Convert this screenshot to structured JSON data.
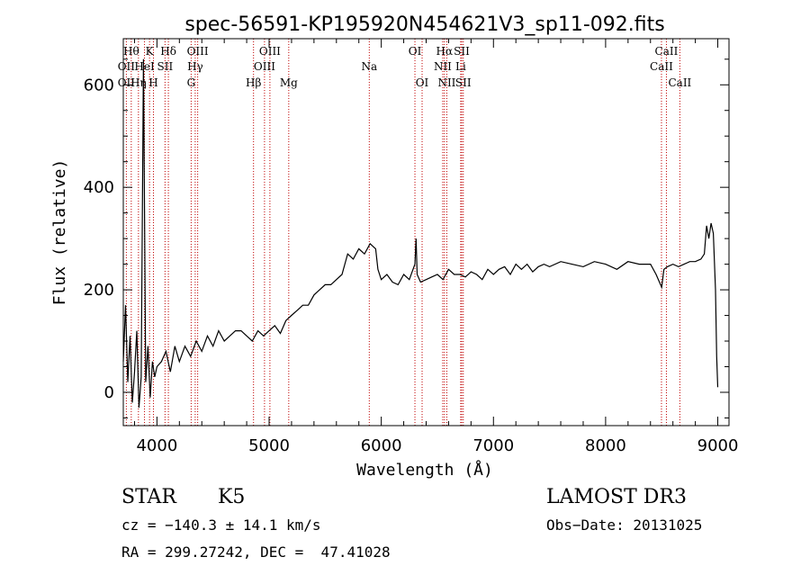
{
  "chart_data": {
    "type": "line",
    "title": "spec-56591-KP195920N454621V3_sp11-092.fits",
    "xlabel": "Wavelength (Å)",
    "ylabel": "Flux (relative)",
    "xlim": [
      3700,
      9100
    ],
    "ylim": [
      -65,
      690
    ],
    "xticks": [
      4000,
      5000,
      6000,
      7000,
      8000,
      9000
    ],
    "yticks": [
      0,
      200,
      400,
      600
    ],
    "grid": false,
    "series": [
      {
        "x": [
          3700,
          3720,
          3740,
          3760,
          3780,
          3800,
          3820,
          3840,
          3860,
          3880,
          3900,
          3920,
          3940,
          3960,
          3980,
          4000,
          4040,
          4080,
          4120,
          4160,
          4200,
          4250,
          4300,
          4350,
          4400,
          4450,
          4500,
          4550,
          4600,
          4650,
          4700,
          4750,
          4800,
          4850,
          4900,
          4950,
          5000,
          5050,
          5100,
          5150,
          5200,
          5250,
          5300,
          5350,
          5400,
          5450,
          5500,
          5550,
          5600,
          5650,
          5700,
          5750,
          5800,
          5850,
          5900,
          5950,
          5970,
          6000,
          6050,
          6100,
          6150,
          6200,
          6250,
          6300,
          6310,
          6320,
          6350,
          6400,
          6450,
          6500,
          6550,
          6600,
          6650,
          6700,
          6750,
          6800,
          6850,
          6900,
          6950,
          7000,
          7050,
          7100,
          7150,
          7200,
          7250,
          7300,
          7350,
          7400,
          7450,
          7500,
          7600,
          7700,
          7800,
          7900,
          8000,
          8100,
          8200,
          8300,
          8400,
          8450,
          8500,
          8520,
          8550,
          8600,
          8650,
          8700,
          8750,
          8800,
          8850,
          8880,
          8900,
          8920,
          8940,
          8960,
          8980,
          8990,
          9000
        ],
        "y": [
          60,
          170,
          20,
          110,
          -20,
          40,
          120,
          -30,
          30,
          650,
          20,
          90,
          -10,
          60,
          30,
          50,
          60,
          80,
          40,
          90,
          60,
          90,
          70,
          100,
          80,
          110,
          90,
          120,
          100,
          110,
          120,
          120,
          110,
          100,
          120,
          110,
          120,
          130,
          115,
          140,
          150,
          160,
          170,
          170,
          190,
          200,
          210,
          210,
          220,
          230,
          270,
          260,
          280,
          270,
          290,
          280,
          240,
          220,
          230,
          215,
          210,
          230,
          220,
          250,
          300,
          230,
          215,
          220,
          225,
          230,
          220,
          240,
          230,
          230,
          225,
          235,
          230,
          220,
          240,
          230,
          240,
          245,
          230,
          250,
          240,
          250,
          235,
          245,
          250,
          245,
          255,
          250,
          245,
          255,
          250,
          240,
          255,
          250,
          250,
          230,
          205,
          240,
          245,
          250,
          245,
          250,
          255,
          255,
          260,
          270,
          325,
          300,
          330,
          310,
          200,
          70,
          10
        ]
      }
    ],
    "line_markers": [
      {
        "label": "OII",
        "x": 3727,
        "row": 2
      },
      {
        "label": "OII",
        "x": 3727,
        "row": 3
      },
      {
        "label": "Hθ",
        "x": 3771,
        "row": 1
      },
      {
        "label": "Hη",
        "x": 3835,
        "row": 3
      },
      {
        "label": "HeI",
        "x": 3889,
        "row": 2
      },
      {
        "label": "K",
        "x": 3934,
        "row": 1
      },
      {
        "label": "H",
        "x": 3969,
        "row": 3
      },
      {
        "label": "SII",
        "x": 4072,
        "row": 2
      },
      {
        "label": "Hδ",
        "x": 4102,
        "row": 1
      },
      {
        "label": "OIII",
        "x": 4363,
        "row": 1
      },
      {
        "label": "Hγ",
        "x": 4341,
        "row": 2
      },
      {
        "label": "G",
        "x": 4305,
        "row": 3
      },
      {
        "label": "Hβ",
        "x": 4861,
        "row": 3
      },
      {
        "label": "OIII",
        "x": 5007,
        "row": 1
      },
      {
        "label": "OIII",
        "x": 4959,
        "row": 2
      },
      {
        "label": "Mg",
        "x": 5175,
        "row": 3
      },
      {
        "label": "Na",
        "x": 5893,
        "row": 2
      },
      {
        "label": "OI",
        "x": 6300,
        "row": 1
      },
      {
        "label": "OI",
        "x": 6364,
        "row": 3
      },
      {
        "label": "Hα",
        "x": 6563,
        "row": 1
      },
      {
        "label": "NII",
        "x": 6548,
        "row": 2
      },
      {
        "label": "NII",
        "x": 6584,
        "row": 3
      },
      {
        "label": "SII",
        "x": 6717,
        "row": 1
      },
      {
        "label": "Li",
        "x": 6708,
        "row": 2
      },
      {
        "label": "SII",
        "x": 6731,
        "row": 3
      },
      {
        "label": "CaII",
        "x": 8542,
        "row": 1
      },
      {
        "label": "CaII",
        "x": 8498,
        "row": 2
      },
      {
        "label": "CaII",
        "x": 8662,
        "row": 3
      }
    ]
  },
  "info": {
    "object_class": "STAR",
    "subclass": "K5",
    "survey": "LAMOST DR3",
    "cz": "cz = −140.3 ± 14.1 km/s",
    "obs_date": "Obs−Date: 20131025",
    "coords": "RA = 299.27242, DEC =  47.41028"
  }
}
